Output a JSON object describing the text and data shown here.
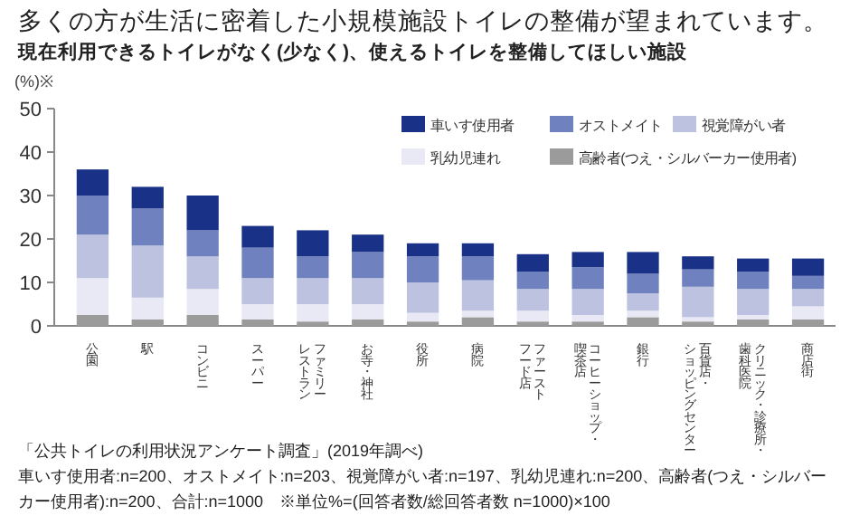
{
  "chart_data": {
    "type": "bar",
    "stacked": true,
    "title": "多くの方が生活に密着した小規模施設トイレの整備が望まれています。",
    "subtitle": "現在利用できるトイレがなく(少なく)、使えるトイレを整備してほしい施設",
    "ylabel": "(%)※",
    "categories": [
      "公園",
      "駅",
      "コンビニ",
      "スーパー",
      "ファミリーレストラン",
      "お寺・神社",
      "役所",
      "病院",
      "ファーストフード店",
      "コーヒーショップ・喫茶店",
      "銀行",
      "百貨店・ショッピングセンター",
      "クリニック・診療所・歯科医院",
      "商店街"
    ],
    "series": [
      {
        "name": "高齢者(つえ・シルバーカー使用者)",
        "color": "#9b9b9b",
        "values": [
          2.5,
          1.5,
          2.5,
          1.5,
          1,
          1.5,
          1,
          2,
          1,
          1,
          2,
          1,
          1.5,
          1.5
        ]
      },
      {
        "name": "乳幼児連れ",
        "color": "#e8e9f5",
        "values": [
          8.5,
          5,
          6,
          3.5,
          4,
          3.5,
          2,
          1.5,
          2.5,
          1.5,
          1.5,
          1,
          1,
          3
        ]
      },
      {
        "name": "視覚障がい者",
        "color": "#bcc2e0",
        "values": [
          10,
          12,
          7.5,
          6,
          6,
          6,
          7,
          7,
          5,
          6,
          4,
          7,
          6,
          4
        ]
      },
      {
        "name": "オストメイト",
        "color": "#6f82bf",
        "values": [
          9,
          8.5,
          6,
          7,
          5,
          6,
          6,
          5.5,
          4,
          5,
          4.5,
          4,
          4,
          3
        ]
      },
      {
        "name": "車いす使用者",
        "color": "#1a3188",
        "values": [
          6,
          5,
          8,
          5,
          6,
          4,
          3,
          3,
          4,
          3.5,
          5,
          3,
          3,
          4
        ]
      }
    ],
    "ylim": [
      0,
      50
    ],
    "yticks": [
      0,
      10,
      20,
      30,
      40,
      50
    ],
    "grid": false,
    "legend": "top right",
    "annotations": [
      "「公共トイレの利用状況アンケート調査」(2019年調べ)",
      "車いす使用者:n=200、オストメイト:n=203、視覚障がい者:n=197、乳幼児連れ:n=200、高齢者(つえ・シルバーカー使用者):n=200、合計:n=1000　※単位%=(回答者数/総回答者数 n=1000)×100"
    ]
  }
}
